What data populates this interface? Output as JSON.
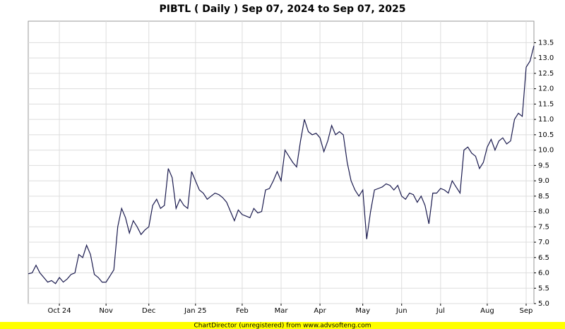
{
  "chart_data": {
    "type": "line",
    "title": "PIBTL ( Daily ) Sep 07, 2024 to Sep 07, 2025",
    "footer": "ChartDirector (unregistered) from www.advsofteng.com",
    "categories": [
      null,
      null,
      null,
      null,
      null,
      null,
      null,
      null,
      "Oct 24",
      null,
      null,
      null,
      null,
      null,
      null,
      null,
      null,
      null,
      null,
      null,
      "Nov",
      null,
      null,
      null,
      null,
      null,
      null,
      null,
      null,
      null,
      null,
      "Dec",
      null,
      null,
      null,
      null,
      null,
      null,
      null,
      null,
      null,
      null,
      null,
      "Jan 25",
      null,
      null,
      null,
      null,
      null,
      null,
      null,
      null,
      null,
      null,
      null,
      "Feb",
      null,
      null,
      null,
      null,
      null,
      null,
      null,
      null,
      null,
      "Mar",
      null,
      null,
      null,
      null,
      null,
      null,
      null,
      null,
      null,
      "Apr",
      null,
      null,
      null,
      null,
      null,
      null,
      null,
      null,
      null,
      null,
      "May",
      null,
      null,
      null,
      null,
      null,
      null,
      null,
      null,
      null,
      "Jun",
      null,
      null,
      null,
      null,
      null,
      null,
      null,
      null,
      null,
      "Jul",
      null,
      null,
      null,
      null,
      null,
      null,
      null,
      null,
      null,
      null,
      null,
      "Aug",
      null,
      null,
      null,
      null,
      null,
      null,
      null,
      null,
      null,
      "Sep",
      null,
      null
    ],
    "series": [
      {
        "name": "PIBTL",
        "color": "#1a1a4e",
        "values": [
          5.97,
          6.0,
          6.25,
          6.0,
          5.85,
          5.7,
          5.75,
          5.65,
          5.85,
          5.7,
          5.8,
          5.95,
          6.0,
          6.6,
          6.5,
          6.9,
          6.6,
          5.95,
          5.85,
          5.7,
          5.7,
          5.9,
          6.1,
          7.5,
          8.1,
          7.8,
          7.3,
          7.7,
          7.5,
          7.25,
          7.4,
          7.5,
          8.2,
          8.4,
          8.1,
          8.2,
          9.4,
          9.1,
          8.1,
          8.4,
          8.2,
          8.1,
          9.3,
          9.0,
          8.7,
          8.6,
          8.4,
          8.5,
          8.6,
          8.55,
          8.45,
          8.3,
          8.0,
          7.7,
          8.05,
          7.9,
          7.85,
          7.8,
          8.1,
          7.95,
          8.0,
          8.7,
          8.75,
          9.0,
          9.3,
          9.0,
          10.0,
          9.8,
          9.6,
          9.45,
          10.3,
          11.0,
          10.6,
          10.5,
          10.55,
          10.4,
          9.95,
          10.3,
          10.8,
          10.5,
          10.6,
          10.5,
          9.6,
          9.0,
          8.7,
          8.5,
          8.7,
          7.1,
          8.0,
          8.7,
          8.75,
          8.8,
          8.9,
          8.85,
          8.7,
          8.85,
          8.5,
          8.4,
          8.6,
          8.55,
          8.3,
          8.5,
          8.2,
          7.6,
          8.6,
          8.6,
          8.75,
          8.7,
          8.6,
          9.0,
          8.8,
          8.6,
          10.0,
          10.1,
          9.9,
          9.8,
          9.4,
          9.6,
          10.1,
          10.35,
          10.0,
          10.3,
          10.4,
          10.2,
          10.3,
          11.0,
          11.2,
          11.1,
          12.7,
          12.9,
          13.4
        ]
      }
    ],
    "ylim": [
      5,
      14.2
    ],
    "yticks": [
      {
        "value": 5,
        "label": "5.0"
      },
      5.5,
      {
        "value": 6,
        "label": "6.0"
      },
      6.5,
      {
        "value": 7,
        "label": "7.0"
      },
      7.5,
      {
        "value": 8,
        "label": "8.0"
      },
      8.5,
      {
        "value": 9,
        "label": "9.0"
      },
      9.5,
      {
        "value": 10,
        "label": "10.0"
      },
      10.5,
      {
        "value": 11,
        "label": "11.0"
      },
      11.5,
      {
        "value": 12,
        "label": "12.0"
      },
      12.5,
      {
        "value": 13,
        "label": "13.0"
      },
      13.5
    ],
    "grid": true
  }
}
